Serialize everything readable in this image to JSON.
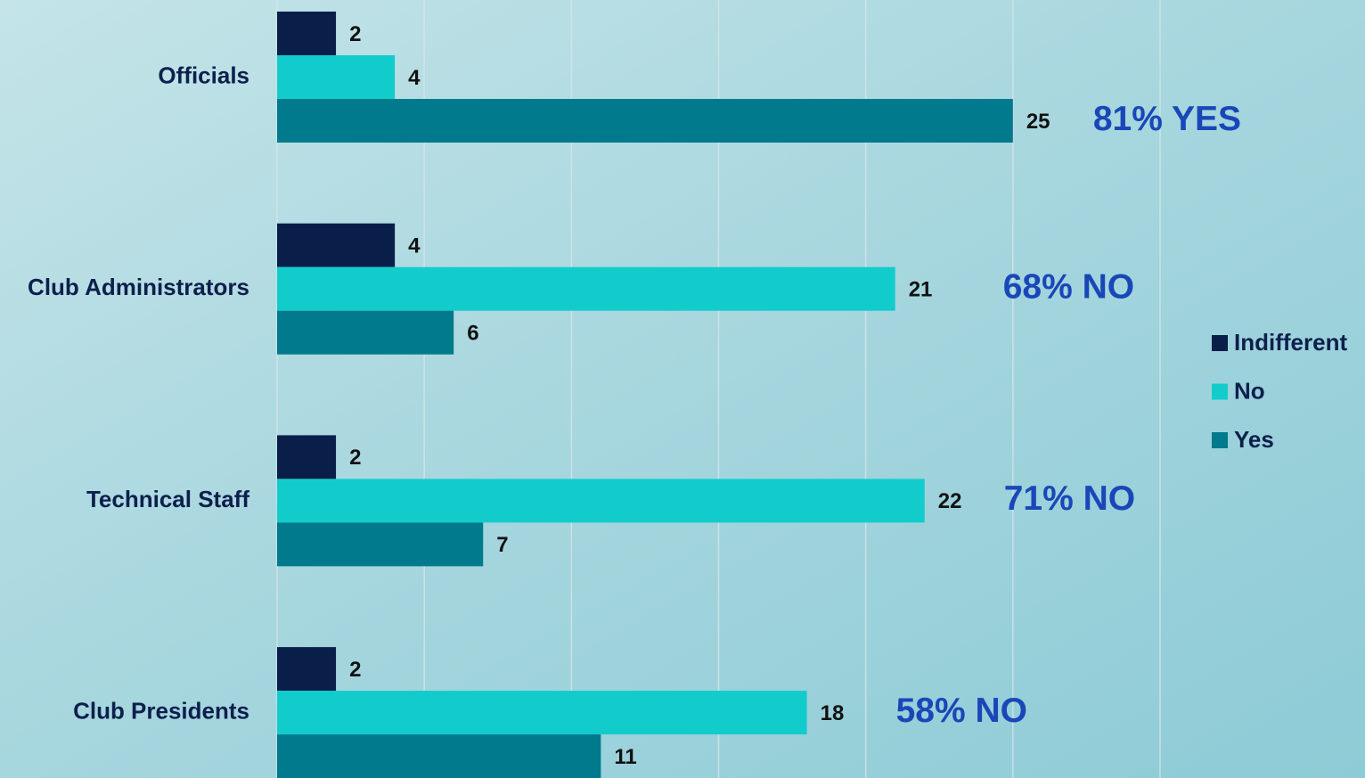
{
  "chart_data": {
    "type": "hbar",
    "categories": [
      "Officials",
      "Club Administrators",
      "Technical Staff",
      "Club Presidents"
    ],
    "series": [
      {
        "name": "Indifferent",
        "color": "#0a1e4a",
        "values": [
          2,
          4,
          2,
          2
        ]
      },
      {
        "name": "No",
        "color": "#12cccc",
        "values": [
          4,
          21,
          22,
          18
        ]
      },
      {
        "name": "Yes",
        "color": "#007a8c",
        "values": [
          25,
          6,
          7,
          11
        ]
      }
    ],
    "annotations": [
      "81% YES",
      "68% NO",
      "71% NO",
      "58% NO"
    ],
    "xlim": [
      0,
      30
    ],
    "xticks": [
      0,
      5,
      10,
      15,
      20,
      25,
      30
    ],
    "grid": true,
    "legend": "right"
  }
}
